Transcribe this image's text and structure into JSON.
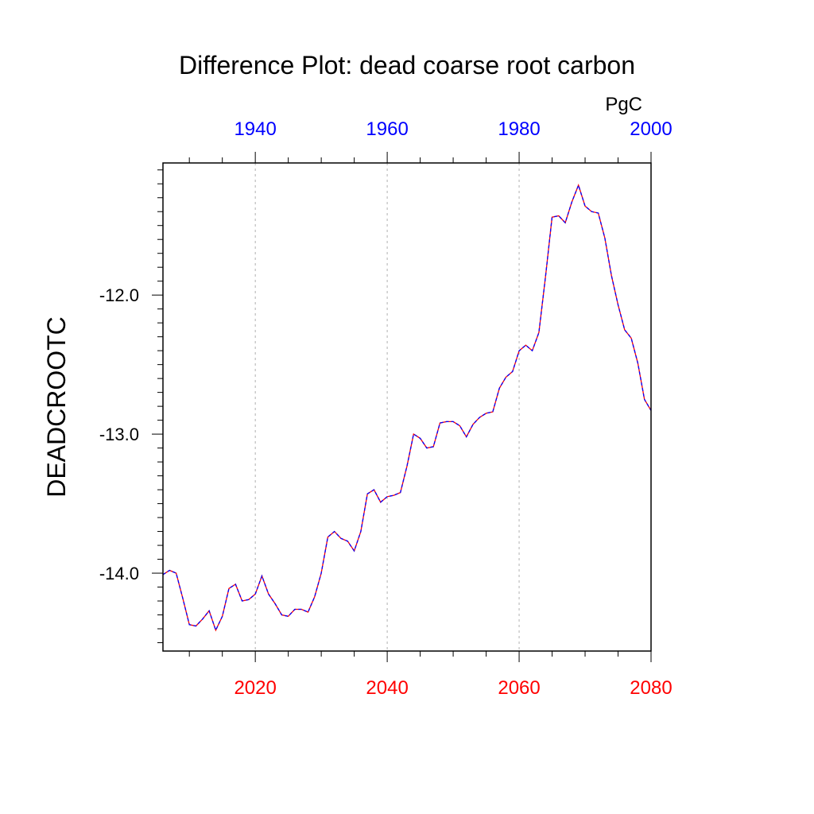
{
  "chart_data": {
    "type": "line",
    "title": "Difference Plot: dead coarse root carbon",
    "units": "PgC",
    "ylabel": "DEADCROOTC",
    "colors": {
      "bottom_axis_labels": "#ff0000",
      "top_axis_labels": "#0000ff",
      "series_line_a": "#ff0000",
      "series_line_b": "#0000ff",
      "grid": "#b0b0b0"
    },
    "x_bottom": {
      "range": [
        2006,
        2080
      ],
      "ticks": [
        2020,
        2040,
        2060,
        2080
      ],
      "tick_labels": [
        "2020",
        "2040",
        "2060",
        "2080"
      ]
    },
    "x_top": {
      "range": [
        1926,
        2000
      ],
      "ticks": [
        1940,
        1960,
        1980,
        2000
      ],
      "tick_labels": [
        "1940",
        "1960",
        "1980",
        "2000"
      ]
    },
    "y": {
      "range": [
        -14.56,
        -11.05
      ],
      "ticks": [
        -14.0,
        -13.0,
        -12.0
      ],
      "tick_labels": [
        "-14.0",
        "-13.0",
        "-12.0"
      ]
    },
    "grid": "vertical dashed at bottom-axis major ticks",
    "series": [
      {
        "x": [
          2006,
          2007,
          2008,
          2009,
          2010,
          2011,
          2012,
          2013,
          2014,
          2015,
          2016,
          2017,
          2018,
          2019,
          2020,
          2021,
          2022,
          2023,
          2024,
          2025,
          2026,
          2027,
          2028,
          2029,
          2030,
          2031,
          2032,
          2033,
          2034,
          2035,
          2036,
          2037,
          2038,
          2039,
          2040,
          2041,
          2042,
          2043,
          2044,
          2045,
          2046,
          2047,
          2048,
          2049,
          2050,
          2051,
          2052,
          2053,
          2054,
          2055,
          2056,
          2057,
          2058,
          2059,
          2060,
          2061,
          2062,
          2063,
          2064,
          2065,
          2066,
          2067,
          2068,
          2069,
          2070,
          2071,
          2072,
          2073,
          2074,
          2075,
          2076,
          2077,
          2078,
          2079,
          2080
        ],
        "values": [
          -14.01,
          -13.98,
          -14.0,
          -14.18,
          -14.37,
          -14.38,
          -14.33,
          -14.27,
          -14.41,
          -14.31,
          -14.11,
          -14.08,
          -14.2,
          -14.19,
          -14.15,
          -14.02,
          -14.15,
          -14.22,
          -14.3,
          -14.31,
          -14.26,
          -14.26,
          -14.28,
          -14.17,
          -14.0,
          -13.74,
          -13.7,
          -13.75,
          -13.77,
          -13.84,
          -13.7,
          -13.43,
          -13.4,
          -13.49,
          -13.45,
          -13.44,
          -13.42,
          -13.23,
          -13.0,
          -13.03,
          -13.1,
          -13.09,
          -12.92,
          -12.91,
          -12.91,
          -12.94,
          -13.02,
          -12.93,
          -12.88,
          -12.85,
          -12.84,
          -12.67,
          -12.59,
          -12.55,
          -12.4,
          -12.36,
          -12.4,
          -12.27,
          -11.87,
          -11.44,
          -11.43,
          -11.48,
          -11.33,
          -11.21,
          -11.36,
          -11.4,
          -11.41,
          -11.59,
          -11.86,
          -12.07,
          -12.25,
          -12.31,
          -12.49,
          -12.75,
          -12.83
        ]
      }
    ]
  }
}
